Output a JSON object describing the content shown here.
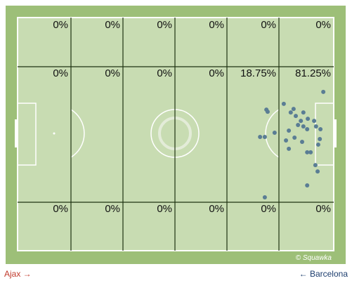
{
  "zones": {
    "rows": [
      [
        "0%",
        "0%",
        "0%",
        "0%",
        "0%",
        "0%"
      ],
      [
        "0%",
        "0%",
        "0%",
        "0%",
        "18.75%",
        "81.25%"
      ],
      [
        "0%",
        "0%",
        "0%",
        "0%",
        "0%",
        "0%"
      ]
    ]
  },
  "points": {
    "color": "#5a7d94",
    "x": [
      96.7,
      78.7,
      79.1,
      84.2,
      87.3,
      86.4,
      90.4,
      88.0,
      91.8,
      89.6,
      88.7,
      90.4,
      93.8,
      94.4,
      95.8,
      81.3,
      85.8,
      91.6,
      76.7,
      78.2,
      87.6,
      84.9,
      95.6,
      90.0,
      95.1,
      85.8,
      91.6,
      92.7,
      94.2,
      94.9,
      91.6,
      78.2
    ],
    "y": [
      31.9,
      39.5,
      40.4,
      37.0,
      39.2,
      40.7,
      40.7,
      42.2,
      43.4,
      44.3,
      46.1,
      46.7,
      44.3,
      46.7,
      47.9,
      49.4,
      48.5,
      47.9,
      51.2,
      51.2,
      51.5,
      52.7,
      52.1,
      53.3,
      54.5,
      56.3,
      57.8,
      57.8,
      63.3,
      66.0,
      72.0,
      77.1
    ]
  },
  "watermark": "© Squawka",
  "home_team": "Ajax →",
  "away_team": "← Barcelona"
}
